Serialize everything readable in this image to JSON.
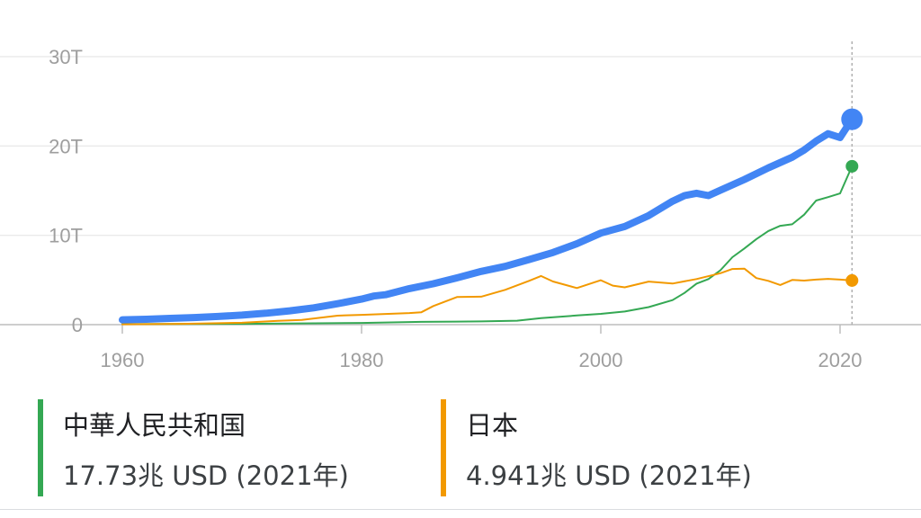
{
  "chart_data": {
    "type": "line",
    "xlim": [
      1960,
      2025
    ],
    "ylim": [
      0,
      30
    ],
    "yticks": [
      0,
      10,
      20,
      30
    ],
    "ytick_labels": [
      "0",
      "10T",
      "20T",
      "30T"
    ],
    "xticks": [
      1960,
      1980,
      2000,
      2020
    ],
    "xtick_labels": [
      "1960",
      "1980",
      "2000",
      "2020"
    ],
    "grid": true,
    "cursor_x": 2021,
    "series": [
      {
        "color": "#4285f4",
        "x": [
          1960,
          1962,
          1964,
          1966,
          1968,
          1970,
          1972,
          1974,
          1976,
          1978,
          1980,
          1981,
          1982,
          1984,
          1986,
          1988,
          1990,
          1992,
          1994,
          1996,
          1998,
          2000,
          2002,
          2004,
          2006,
          2007,
          2008,
          2009,
          2010,
          2012,
          2014,
          2016,
          2017,
          2018,
          2019,
          2020,
          2021
        ],
        "values": [
          0.54,
          0.6,
          0.7,
          0.8,
          0.92,
          1.07,
          1.28,
          1.55,
          1.88,
          2.35,
          2.86,
          3.2,
          3.35,
          4.04,
          4.58,
          5.24,
          5.96,
          6.52,
          7.29,
          8.07,
          9.06,
          10.25,
          10.98,
          12.21,
          13.82,
          14.45,
          14.71,
          14.45,
          15.05,
          16.25,
          17.55,
          18.75,
          19.55,
          20.55,
          21.37,
          20.95,
          22.99
        ]
      },
      {
        "name": "中華人民共和国",
        "color": "#34a853",
        "x": [
          1960,
          1970,
          1980,
          1985,
          1990,
          1993,
          1995,
          1998,
          2000,
          2002,
          2004,
          2006,
          2007,
          2008,
          2009,
          2010,
          2011,
          2012,
          2013,
          2014,
          2015,
          2016,
          2017,
          2018,
          2019,
          2020,
          2021
        ],
        "values": [
          0.06,
          0.09,
          0.19,
          0.31,
          0.36,
          0.44,
          0.73,
          1.03,
          1.21,
          1.47,
          1.96,
          2.75,
          3.55,
          4.59,
          5.1,
          6.09,
          7.55,
          8.53,
          9.57,
          10.48,
          11.06,
          11.23,
          12.31,
          13.89,
          14.28,
          14.69,
          17.73
        ]
      },
      {
        "name": "日本",
        "color": "#f29900",
        "x": [
          1960,
          1965,
          1970,
          1973,
          1975,
          1978,
          1980,
          1982,
          1984,
          1985,
          1986,
          1988,
          1990,
          1992,
          1994,
          1995,
          1996,
          1998,
          2000,
          2001,
          2002,
          2004,
          2006,
          2008,
          2010,
          2011,
          2012,
          2013,
          2014,
          2015,
          2016,
          2017,
          2018,
          2019,
          2020,
          2021
        ],
        "values": [
          0.04,
          0.09,
          0.21,
          0.43,
          0.52,
          1.01,
          1.1,
          1.2,
          1.3,
          1.39,
          2.08,
          3.1,
          3.13,
          3.9,
          4.9,
          5.45,
          4.83,
          4.1,
          4.97,
          4.37,
          4.18,
          4.82,
          4.6,
          5.1,
          5.76,
          6.23,
          6.27,
          5.21,
          4.9,
          4.44,
          5.0,
          4.93,
          5.04,
          5.12,
          5.04,
          4.94
        ]
      }
    ]
  },
  "legend": [
    {
      "name": "中華人民共和国",
      "value": "17.73兆 USD (2021年)",
      "color": "#34a853"
    },
    {
      "name": "日本",
      "value": "4.941兆 USD (2021年)",
      "color": "#f29900"
    }
  ]
}
